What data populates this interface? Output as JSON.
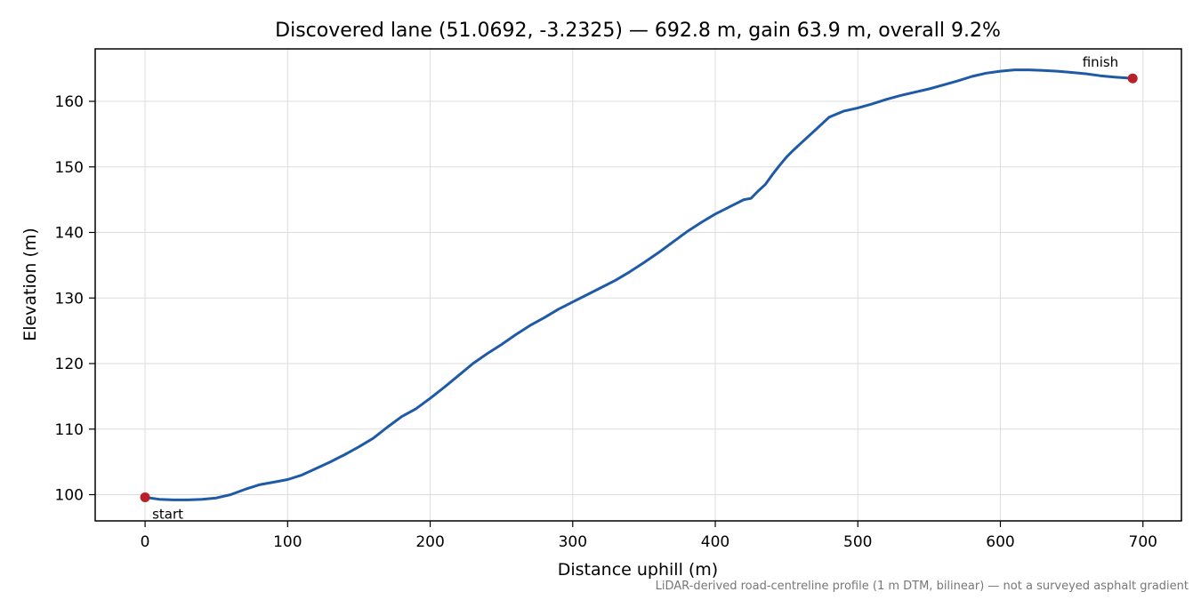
{
  "chart_data": {
    "type": "line",
    "title": "Discovered lane (51.0692, -3.2325) — 692.8 m, gain 63.9 m, overall 9.2%",
    "xlabel": "Distance uphill (m)",
    "ylabel": "Elevation (m)",
    "xlim": [
      -35,
      727
    ],
    "ylim": [
      96,
      168
    ],
    "xticks": [
      0,
      100,
      200,
      300,
      400,
      500,
      600,
      700
    ],
    "yticks": [
      100,
      110,
      120,
      130,
      140,
      150,
      160
    ],
    "grid": true,
    "series": [
      {
        "color": "#1f5aa6",
        "x": [
          0,
          10,
          20,
          30,
          40,
          50,
          60,
          70,
          80,
          90,
          100,
          110,
          120,
          130,
          140,
          150,
          160,
          170,
          180,
          190,
          200,
          210,
          220,
          230,
          240,
          250,
          260,
          270,
          280,
          290,
          300,
          310,
          320,
          330,
          340,
          350,
          360,
          370,
          380,
          390,
          400,
          410,
          420,
          425,
          430,
          435,
          440,
          445,
          450,
          455,
          460,
          470,
          480,
          490,
          500,
          510,
          520,
          530,
          540,
          550,
          560,
          570,
          580,
          590,
          600,
          610,
          620,
          630,
          640,
          650,
          660,
          670,
          680,
          692.8
        ],
        "y": [
          99.6,
          99.3,
          99.2,
          99.2,
          99.3,
          99.5,
          100.0,
          100.8,
          101.5,
          101.9,
          102.3,
          103.0,
          104.0,
          105.0,
          106.1,
          107.3,
          108.6,
          110.3,
          111.9,
          113.1,
          114.7,
          116.4,
          118.2,
          120.0,
          121.5,
          122.9,
          124.4,
          125.8,
          127.0,
          128.3,
          129.4,
          130.5,
          131.6,
          132.7,
          134.0,
          135.4,
          136.9,
          138.5,
          140.1,
          141.5,
          142.8,
          143.9,
          145.0,
          145.2,
          146.3,
          147.3,
          148.8,
          150.2,
          151.5,
          152.6,
          153.6,
          155.6,
          157.6,
          158.5,
          159.0,
          159.6,
          160.3,
          160.9,
          161.4,
          161.9,
          162.5,
          163.1,
          163.8,
          164.3,
          164.6,
          164.8,
          164.8,
          164.7,
          164.6,
          164.4,
          164.2,
          163.9,
          163.7,
          163.5
        ]
      }
    ],
    "annotations": [
      {
        "text": "start",
        "x": 0,
        "y": 99.6
      },
      {
        "text": "finish",
        "x": 692.8,
        "y": 163.5
      }
    ],
    "marker_color": "#b8202a"
  },
  "footnote": "LiDAR-derived road-centreline profile (1 m DTM, bilinear) — not a surveyed asphalt gradient"
}
